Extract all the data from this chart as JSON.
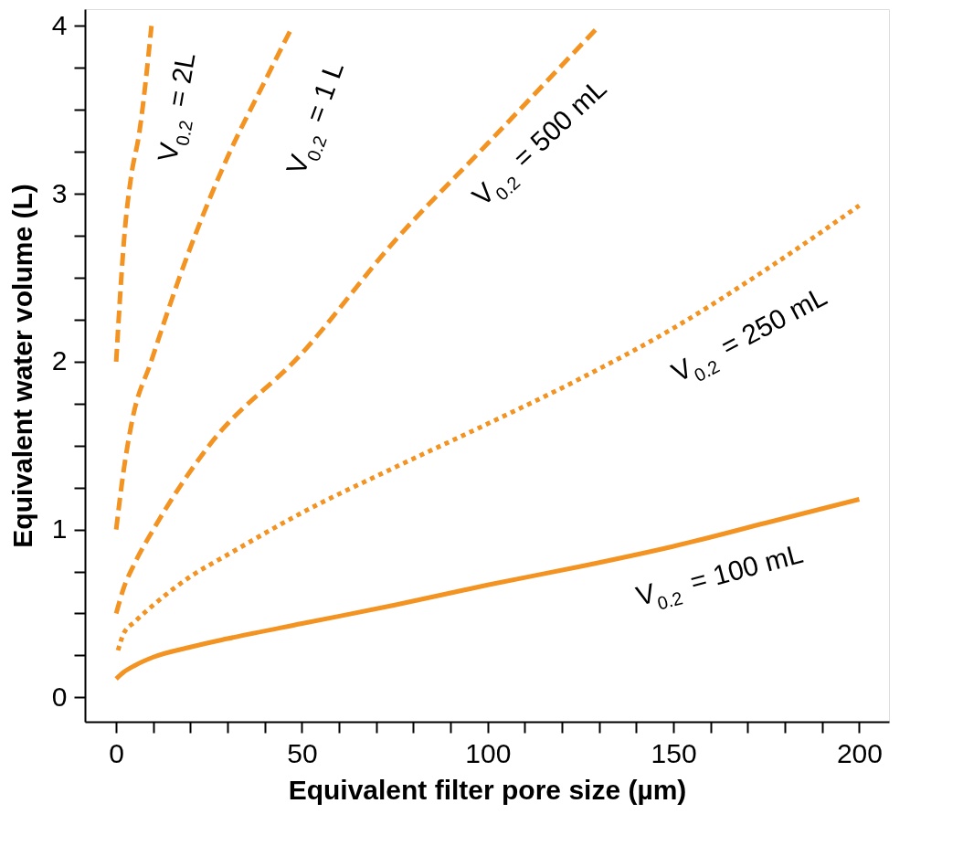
{
  "chart_data": {
    "type": "line",
    "xlabel": "Equivalent filter pore size (µm)",
    "ylabel": "Equivalent water volume (L)",
    "xlim": [
      -8.4,
      208
    ],
    "ylim": [
      -0.145,
      4.1
    ],
    "xticks": [
      0,
      {
        "value": 10,
        "label": null
      },
      {
        "value": 20,
        "label": null
      },
      {
        "value": 30,
        "label": null
      },
      {
        "value": 40,
        "label": null
      },
      50,
      {
        "value": 60,
        "label": null
      },
      {
        "value": 70,
        "label": null
      },
      {
        "value": 80,
        "label": null
      },
      {
        "value": 90,
        "label": null
      },
      100,
      {
        "value": 110,
        "label": null
      },
      {
        "value": 120,
        "label": null
      },
      {
        "value": 130,
        "label": null
      },
      {
        "value": 140,
        "label": null
      },
      150,
      {
        "value": 160,
        "label": null
      },
      {
        "value": 170,
        "label": null
      },
      {
        "value": 180,
        "label": null
      },
      {
        "value": 190,
        "label": null
      },
      200
    ],
    "yticks": [
      0,
      {
        "value": 0.25,
        "label": null
      },
      {
        "value": 0.5,
        "label": null
      },
      {
        "value": 0.75,
        "label": null
      },
      1,
      {
        "value": 1.25,
        "label": null
      },
      {
        "value": 1.5,
        "label": null
      },
      {
        "value": 1.75,
        "label": null
      },
      2,
      {
        "value": 2.25,
        "label": null
      },
      {
        "value": 2.5,
        "label": null
      },
      {
        "value": 2.75,
        "label": null
      },
      3,
      {
        "value": 3.25,
        "label": null
      },
      {
        "value": 3.5,
        "label": null
      },
      {
        "value": 3.75,
        "label": null
      },
      4
    ],
    "grid": false,
    "marker": "none",
    "series": [
      {
        "color": "#f39322",
        "line_style": "dashed",
        "x": [
          0,
          2.4,
          4,
          6.2,
          9.5
        ],
        "values": [
          2.0,
          2.8,
          3.1,
          3.36,
          4.0
        ]
      },
      {
        "color": "#f39322",
        "line_style": "dashed",
        "x": [
          0,
          2,
          4.4,
          9.4,
          17,
          30,
          40,
          47.5
        ],
        "values": [
          1.0,
          1.35,
          1.66,
          2.0,
          2.5,
          3.22,
          3.67,
          4.0
        ]
      },
      {
        "color": "#f39322",
        "line_style": "dashed",
        "x": [
          0,
          2,
          5,
          10,
          25,
          50,
          75,
          100,
          130
        ],
        "values": [
          0.5,
          0.65,
          0.8,
          1.0,
          1.5,
          2.05,
          2.72,
          3.3,
          4.0
        ]
      },
      {
        "color": "#f39322",
        "line_style": "dotted",
        "x": [
          0.5,
          2,
          5,
          10,
          20,
          30,
          50,
          75,
          100,
          125,
          150,
          175,
          200
        ],
        "values": [
          0.28,
          0.38,
          0.45,
          0.55,
          0.72,
          0.85,
          1.1,
          1.37,
          1.63,
          1.9,
          2.2,
          2.55,
          2.93
        ]
      },
      {
        "color": "#f39322",
        "line_style": "solid",
        "x": [
          0,
          2,
          5,
          10,
          20,
          30,
          50,
          75,
          100,
          125,
          150,
          175,
          200
        ],
        "values": [
          0.11,
          0.15,
          0.19,
          0.24,
          0.3,
          0.35,
          0.44,
          0.55,
          0.67,
          0.78,
          0.9,
          1.04,
          1.18
        ]
      }
    ],
    "annotations": [
      "V$_{0.2}$ = 2L",
      "V$_{0.2}$ = 1 L",
      "V$_{0.2}$ = 500 mL",
      "V$_{0.2}$ = 250 mL",
      "V$_{0.2}$ = 100 mL"
    ]
  }
}
